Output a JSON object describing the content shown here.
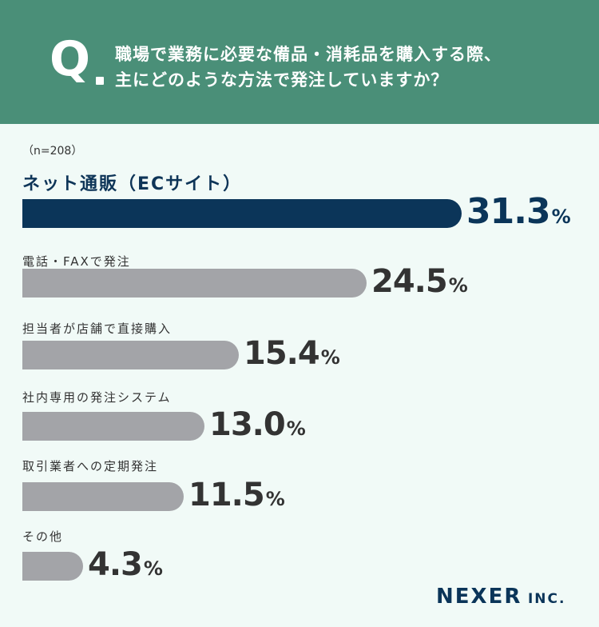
{
  "header": {
    "q_mark": "Q",
    "question_line1": "職場で業務に必要な備品・消耗品を購入する際、",
    "question_line2": "主にどのような方法で発注していますか？"
  },
  "sample_size": "（n=208）",
  "logo": {
    "main": "NEXER",
    "suffix": "INC."
  },
  "colors": {
    "header": "#4a8f78",
    "top_bar": "#0b3559",
    "bar": "#a3a4a8",
    "background": "#f1faf7"
  },
  "chart_data": {
    "type": "bar",
    "orientation": "horizontal",
    "title": "",
    "categories": [
      "ネット通販（ECサイト）",
      "電話・FAXで発注",
      "担当者が店舗で直接購入",
      "社内専用の発注システム",
      "取引業者への定期発注",
      "その他"
    ],
    "values": [
      31.3,
      24.5,
      15.4,
      13.0,
      11.5,
      4.3
    ],
    "value_labels": [
      "31.3",
      "24.5",
      "15.4",
      "13.0",
      "11.5",
      "4.3"
    ],
    "unit": "%",
    "xlim": [
      0,
      31.3
    ],
    "grid": false
  }
}
